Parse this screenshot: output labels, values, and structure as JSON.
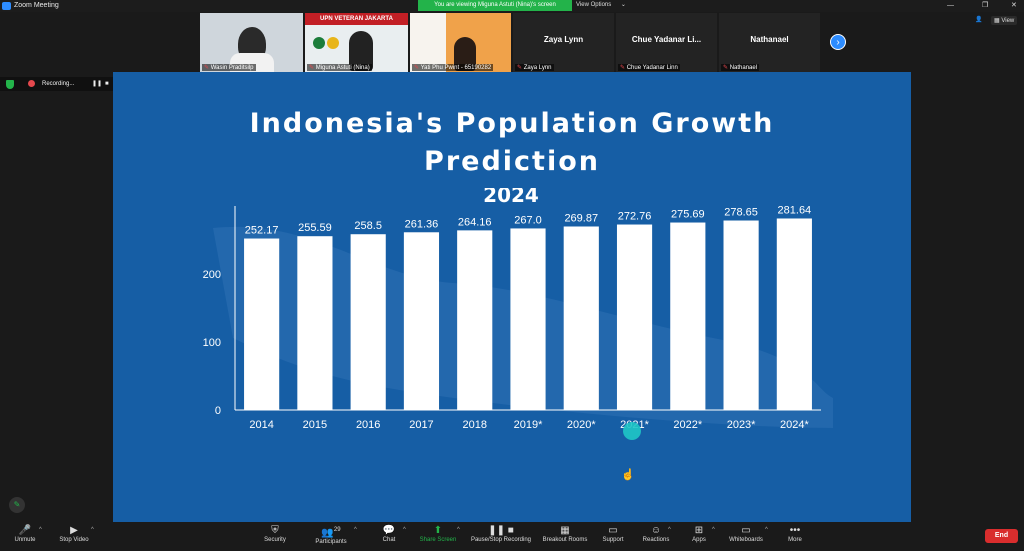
{
  "window": {
    "title": "Zoom Meeting",
    "viewing_banner": "You are viewing Miguna Astuti (Nina)'s screen",
    "view_options": "View Options",
    "view_button": "View"
  },
  "gallery": {
    "participants": [
      {
        "name": "Wasin Praditsilp",
        "has_video": true
      },
      {
        "name": "Miguna Astuti (Nina)",
        "has_video": true,
        "banner": "UPN VETERAN JAKARTA"
      },
      {
        "name": "Yati Phu Pwint - 65190282",
        "has_video": true
      },
      {
        "name": "Zaya Lynn",
        "title": "Zaya Lynn",
        "has_video": false
      },
      {
        "name": "Chue Yadanar Linn",
        "title": "Chue Yadanar Li...",
        "has_video": false
      },
      {
        "name": "Nathanael",
        "title": "Nathanael",
        "has_video": false
      }
    ]
  },
  "recording": {
    "label": "Recording...",
    "pause_icon": "pause-icon",
    "stop_icon": "stop-icon"
  },
  "slide": {
    "title_line1": "Indonesia's Population Growth",
    "title_line2": "Prediction"
  },
  "chart_data": {
    "type": "bar",
    "title": "2024",
    "categories": [
      "2014",
      "2015",
      "2016",
      "2017",
      "2018",
      "2019*",
      "2020*",
      "2021*",
      "2022*",
      "2023*",
      "2024*"
    ],
    "values": [
      252.17,
      255.59,
      258.5,
      261.36,
      264.16,
      267.0,
      269.87,
      272.76,
      275.69,
      278.65,
      281.64
    ],
    "value_labels": [
      "252.17",
      "255.59",
      "258.5",
      "261.36",
      "264.16",
      "267.0",
      "269.87",
      "272.76",
      "275.69",
      "278.65",
      "281.64"
    ],
    "yticks": [
      "0",
      "100",
      "200"
    ],
    "ylim": [
      0,
      300
    ],
    "bar_color": "#ffffff",
    "grid": false
  },
  "toolbar": {
    "items": [
      {
        "label": "Unmute",
        "icon": "mic-muted-icon"
      },
      {
        "label": "Stop Video",
        "icon": "video-icon"
      },
      {
        "label": "Security",
        "icon": "shield-icon"
      },
      {
        "label": "Participants",
        "icon": "participants-icon",
        "count": "29"
      },
      {
        "label": "Chat",
        "icon": "chat-icon"
      },
      {
        "label": "Share Screen",
        "icon": "share-screen-icon"
      },
      {
        "label": "Pause/Stop Recording",
        "icon": "recording-icon"
      },
      {
        "label": "Breakout Rooms",
        "icon": "breakout-icon"
      },
      {
        "label": "Support",
        "icon": "support-icon"
      },
      {
        "label": "Reactions",
        "icon": "reactions-icon"
      },
      {
        "label": "Apps",
        "icon": "apps-icon"
      },
      {
        "label": "Whiteboards",
        "icon": "whiteboard-icon"
      },
      {
        "label": "More",
        "icon": "more-icon"
      }
    ],
    "end_label": "End"
  },
  "colors": {
    "slide_bg": "#165ea5",
    "share_green": "#23b34a",
    "end_red": "#d92d2d",
    "accent_blue": "#2d8cff"
  }
}
